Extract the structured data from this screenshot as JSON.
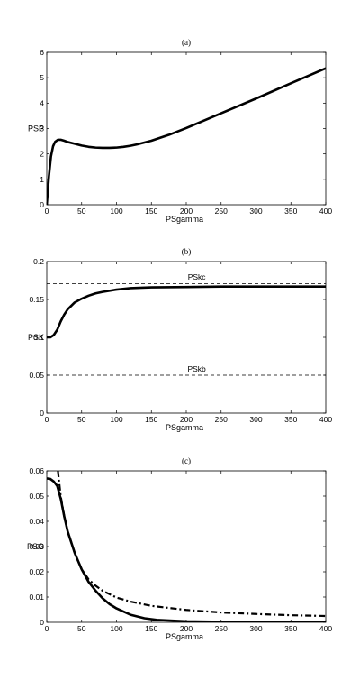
{
  "chart_data": [
    {
      "type": "line",
      "title": "(a)",
      "xlabel": "PSgamma",
      "ylabel": "PSP",
      "xlim": [
        0,
        400
      ],
      "ylim": [
        0,
        6
      ],
      "xticks": [
        0,
        50,
        100,
        150,
        200,
        250,
        300,
        350,
        400
      ],
      "yticks": [
        0,
        1,
        2,
        3,
        4,
        5,
        6
      ],
      "series": [
        {
          "style": "solid-thick",
          "x": [
            0,
            3,
            6,
            9,
            12,
            16,
            20,
            25,
            30,
            40,
            50,
            60,
            70,
            80,
            90,
            100,
            110,
            120,
            130,
            150,
            175,
            200,
            250,
            300,
            350,
            400
          ],
          "y": [
            0,
            1.1,
            1.9,
            2.3,
            2.48,
            2.56,
            2.56,
            2.52,
            2.47,
            2.4,
            2.33,
            2.28,
            2.25,
            2.24,
            2.24,
            2.25,
            2.28,
            2.32,
            2.38,
            2.52,
            2.75,
            3.02,
            3.6,
            4.18,
            4.78,
            5.37
          ]
        }
      ]
    },
    {
      "type": "line",
      "title": "(b)",
      "xlabel": "PSgamma",
      "ylabel": "PSK",
      "xlim": [
        0,
        400
      ],
      "ylim": [
        0,
        0.2
      ],
      "xticks": [
        0,
        50,
        100,
        150,
        200,
        250,
        300,
        350,
        400
      ],
      "yticks": [
        0,
        0.05,
        0.1,
        0.15,
        0.2
      ],
      "annotations": [
        {
          "text": "PSkc",
          "x": 215,
          "y": 0.176
        },
        {
          "text": "PSkb",
          "x": 215,
          "y": 0.055
        }
      ],
      "series": [
        {
          "style": "dashed-thin",
          "x": [
            0,
            400
          ],
          "y": [
            0.171,
            0.171
          ]
        },
        {
          "style": "dashed-thin",
          "x": [
            0,
            400
          ],
          "y": [
            0.05,
            0.05
          ]
        },
        {
          "style": "solid-thick",
          "x": [
            0,
            5,
            10,
            15,
            20,
            25,
            30,
            40,
            50,
            60,
            70,
            80,
            100,
            120,
            150,
            200,
            250,
            300,
            350,
            400
          ],
          "y": [
            0.1,
            0.1,
            0.103,
            0.11,
            0.121,
            0.13,
            0.137,
            0.146,
            0.151,
            0.155,
            0.158,
            0.16,
            0.163,
            0.165,
            0.166,
            0.1665,
            0.167,
            0.167,
            0.167,
            0.167
          ]
        }
      ]
    },
    {
      "type": "line",
      "title": "(c)",
      "xlabel": "PSgamma",
      "ylabel": "PSO",
      "xlim": [
        0,
        400
      ],
      "ylim": [
        0,
        0.06
      ],
      "xticks": [
        0,
        50,
        100,
        150,
        200,
        250,
        300,
        350,
        400
      ],
      "yticks": [
        0,
        0.01,
        0.02,
        0.03,
        0.04,
        0.05,
        0.06
      ],
      "series": [
        {
          "style": "solid-thick",
          "x": [
            0,
            5,
            10,
            15,
            20,
            25,
            30,
            40,
            50,
            60,
            70,
            80,
            90,
            100,
            120,
            140,
            160,
            200,
            250,
            300,
            350,
            400
          ],
          "y": [
            0.057,
            0.0568,
            0.0558,
            0.054,
            0.049,
            0.042,
            0.036,
            0.0275,
            0.021,
            0.016,
            0.0125,
            0.0095,
            0.0072,
            0.0055,
            0.003,
            0.0016,
            0.0009,
            0.0004,
            0.0002,
            0.0001,
            0.0001,
            0.0001
          ]
        },
        {
          "style": "dashdot-thick",
          "x": [
            16,
            18,
            20,
            25,
            30,
            40,
            50,
            60,
            70,
            80,
            100,
            120,
            150,
            200,
            250,
            300,
            350,
            400
          ],
          "y": [
            0.06,
            0.055,
            0.05,
            0.042,
            0.036,
            0.0275,
            0.021,
            0.017,
            0.0145,
            0.0125,
            0.0098,
            0.0082,
            0.0065,
            0.0049,
            0.0039,
            0.0033,
            0.0028,
            0.0025
          ]
        }
      ]
    }
  ]
}
